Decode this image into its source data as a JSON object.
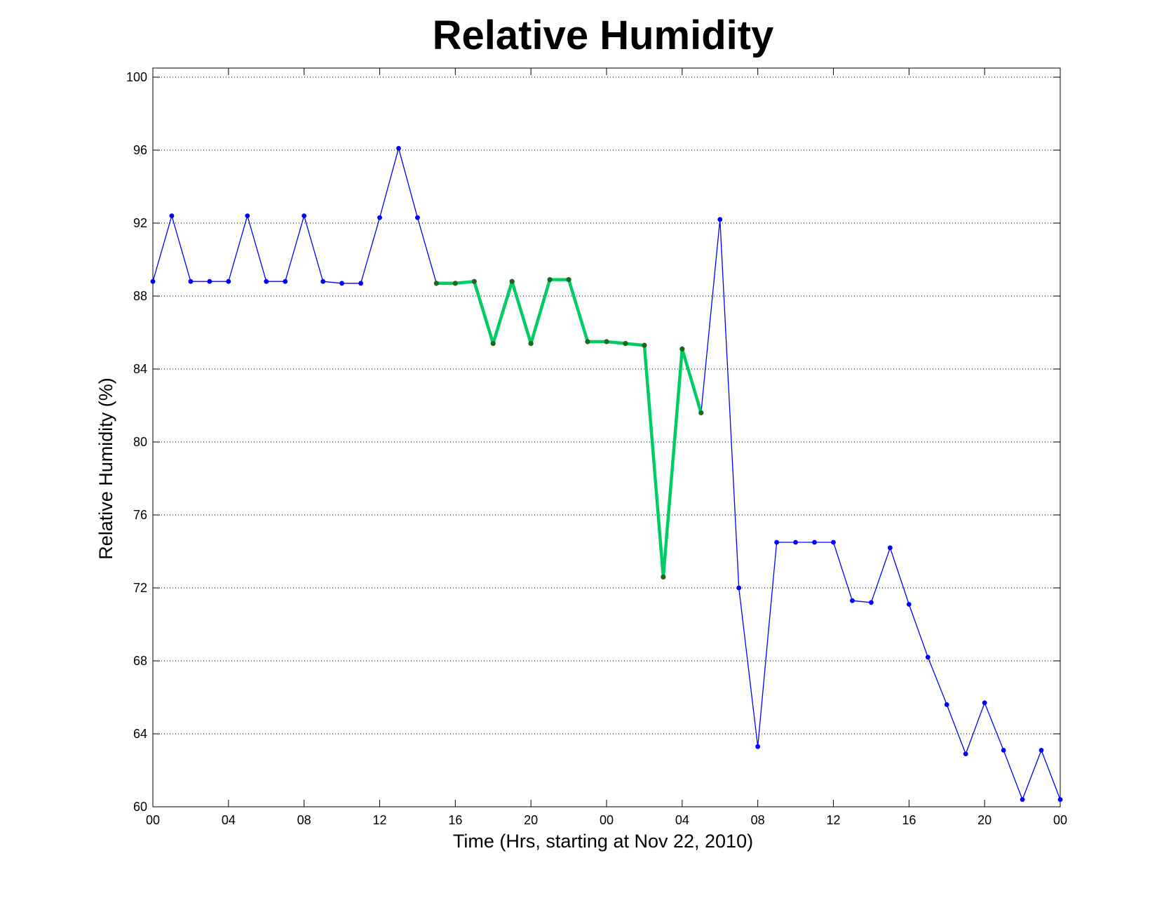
{
  "chart_data": {
    "type": "line",
    "title": "Relative Humidity",
    "xlabel": "Time (Hrs, starting at Nov 22, 2010)",
    "ylabel": "Relative Humidity (%)",
    "xlim": [
      0,
      48
    ],
    "ylim": [
      60,
      100.5
    ],
    "grid": "y-dotted",
    "x_tick_values": [
      0,
      4,
      8,
      12,
      16,
      20,
      24,
      28,
      32,
      36,
      40,
      44,
      48
    ],
    "x_tick_labels": [
      "00",
      "04",
      "08",
      "12",
      "16",
      "20",
      "00",
      "04",
      "08",
      "12",
      "16",
      "20",
      "00"
    ],
    "y_tick_values": [
      60,
      64,
      68,
      72,
      76,
      80,
      84,
      88,
      92,
      96,
      100
    ],
    "y_tick_labels": [
      "60",
      "64",
      "68",
      "72",
      "76",
      "80",
      "84",
      "88",
      "92",
      "96",
      "100"
    ],
    "series": [
      {
        "color": "#0000ff",
        "marker_color": "#0000ff",
        "x": [
          0,
          1,
          2,
          3,
          4,
          5,
          6,
          7,
          8,
          9,
          10,
          11,
          12,
          13,
          14,
          15,
          16,
          17,
          18,
          19,
          20,
          21,
          22,
          23,
          24,
          25,
          26,
          27,
          28,
          29,
          30,
          31,
          32,
          33,
          34,
          35,
          36,
          37,
          38,
          39,
          40,
          41,
          42,
          43,
          44,
          45,
          46,
          47,
          48
        ],
        "values": [
          88.8,
          92.4,
          88.8,
          88.8,
          88.8,
          92.4,
          88.8,
          88.8,
          92.4,
          88.8,
          88.7,
          88.7,
          92.3,
          96.1,
          92.3,
          88.7,
          88.7,
          88.8,
          85.4,
          88.8,
          85.4,
          88.9,
          88.9,
          85.5,
          85.5,
          85.4,
          85.3,
          72.6,
          85.1,
          81.6,
          92.2,
          72.0,
          63.3,
          74.5,
          74.5,
          74.5,
          74.5,
          71.3,
          71.2,
          74.2,
          71.1,
          68.2,
          65.6,
          62.9,
          65.7,
          63.1,
          60.4,
          63.1,
          60.4
        ]
      },
      {
        "color": "#00cc66",
        "marker_color": "#1a6a1a",
        "x": [
          15,
          16,
          17,
          18,
          19,
          20,
          21,
          22,
          23,
          24,
          25,
          26,
          27,
          28,
          29
        ],
        "values": [
          88.7,
          88.7,
          88.8,
          85.4,
          88.8,
          85.4,
          88.9,
          88.9,
          85.5,
          85.5,
          85.4,
          85.3,
          72.6,
          85.1,
          81.6
        ]
      }
    ]
  }
}
